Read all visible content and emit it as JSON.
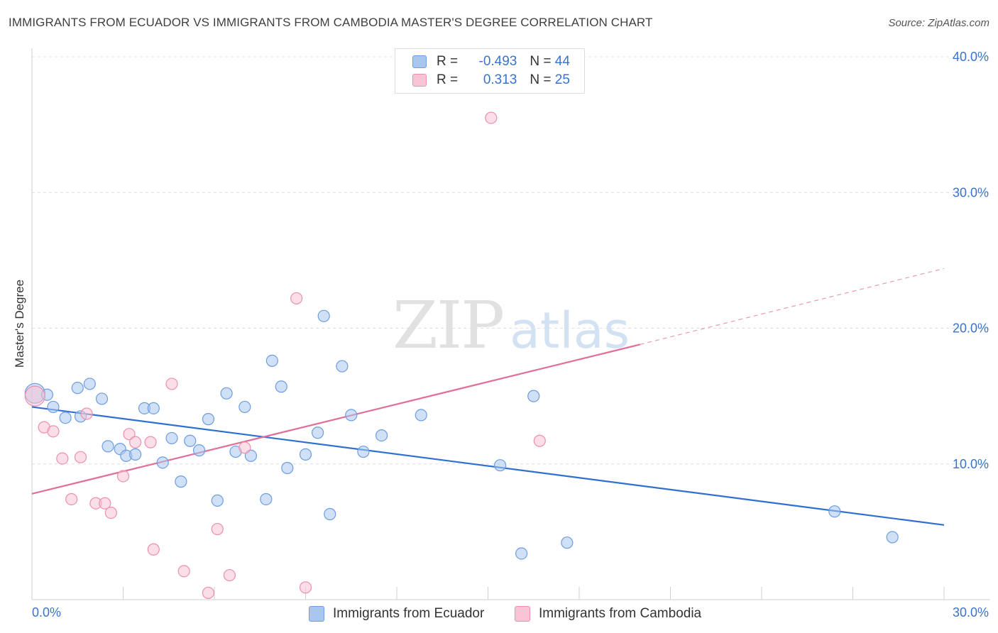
{
  "header": {
    "title": "IMMIGRANTS FROM ECUADOR VS IMMIGRANTS FROM CAMBODIA MASTER'S DEGREE CORRELATION CHART",
    "source": "Source: ZipAtlas.com"
  },
  "watermark": {
    "zip": "ZIP",
    "atlas": "atlas"
  },
  "legend": {
    "rows": [
      {
        "r_label": "R = ",
        "r_value": "-0.493",
        "n_label": "N = ",
        "n_value": "44",
        "color": "#a9c6ef",
        "border": "#6d9de0"
      },
      {
        "r_label": "R = ",
        "r_value": "0.313",
        "n_label": "N = ",
        "n_value": "25",
        "color": "#f8c3d3",
        "border": "#ec8fae"
      }
    ]
  },
  "bottom_legend": [
    {
      "label": "Immigrants from Ecuador",
      "color": "#a9c6ef",
      "border": "#6d9de0"
    },
    {
      "label": "Immigrants from Cambodia",
      "color": "#f8c3d3",
      "border": "#ec8fae"
    }
  ],
  "chart_data": {
    "type": "scatter",
    "title": "IMMIGRANTS FROM ECUADOR VS IMMIGRANTS FROM CAMBODIA MASTER'S DEGREE CORRELATION CHART",
    "ylabel": "Master's Degree",
    "xlim": [
      0,
      30
    ],
    "ylim": [
      0,
      40
    ],
    "x_ticks": [
      "0.0%",
      "30.0%"
    ],
    "y_ticks": [
      {
        "value": 10,
        "label": "10.0%"
      },
      {
        "value": 20,
        "label": "20.0%"
      },
      {
        "value": 30,
        "label": "30.0%"
      },
      {
        "value": 40,
        "label": "40.0%"
      }
    ],
    "grid": true,
    "legend_position": "top-center",
    "series": [
      {
        "name": "Immigrants from Ecuador",
        "color": "#6d9de0",
        "fill": "#a9c6ef",
        "line_color": "#2f6fd0",
        "trend": {
          "x0": 0,
          "y0": 14.2,
          "x1": 30,
          "y1": 5.5
        },
        "points": [
          [
            0.1,
            15.2
          ],
          [
            0.5,
            15.1
          ],
          [
            0.7,
            14.2
          ],
          [
            1.1,
            13.4
          ],
          [
            1.5,
            15.6
          ],
          [
            1.6,
            13.5
          ],
          [
            1.9,
            15.9
          ],
          [
            2.3,
            14.8
          ],
          [
            2.5,
            11.3
          ],
          [
            2.9,
            11.1
          ],
          [
            3.1,
            10.6
          ],
          [
            3.4,
            10.7
          ],
          [
            3.7,
            14.1
          ],
          [
            4.0,
            14.1
          ],
          [
            4.3,
            10.1
          ],
          [
            4.6,
            11.9
          ],
          [
            4.9,
            8.7
          ],
          [
            5.2,
            11.7
          ],
          [
            5.5,
            11.0
          ],
          [
            5.8,
            13.3
          ],
          [
            6.1,
            7.3
          ],
          [
            6.4,
            15.2
          ],
          [
            6.7,
            10.9
          ],
          [
            7.0,
            14.2
          ],
          [
            7.2,
            10.6
          ],
          [
            7.7,
            7.4
          ],
          [
            7.9,
            17.6
          ],
          [
            8.2,
            15.7
          ],
          [
            8.4,
            9.7
          ],
          [
            9.0,
            10.7
          ],
          [
            9.4,
            12.3
          ],
          [
            9.6,
            20.9
          ],
          [
            9.8,
            6.3
          ],
          [
            10.2,
            17.2
          ],
          [
            10.5,
            13.6
          ],
          [
            10.9,
            10.9
          ],
          [
            11.5,
            12.1
          ],
          [
            12.8,
            13.6
          ],
          [
            15.4,
            9.9
          ],
          [
            16.1,
            3.4
          ],
          [
            16.5,
            15.0
          ],
          [
            17.6,
            4.2
          ],
          [
            26.4,
            6.5
          ],
          [
            28.3,
            4.6
          ]
        ]
      },
      {
        "name": "Immigrants from Cambodia",
        "color": "#ec8fae",
        "fill": "#f8c3d3",
        "line_color": "#e0709a",
        "trend": {
          "x0": 0,
          "y0": 7.8,
          "x1": 20.0,
          "y1": 18.8,
          "dash_x1": 30,
          "dash_y1": 24.4
        },
        "points": [
          [
            0.1,
            15.0
          ],
          [
            0.4,
            12.7
          ],
          [
            0.7,
            12.4
          ],
          [
            1.0,
            10.4
          ],
          [
            1.3,
            7.4
          ],
          [
            1.6,
            10.5
          ],
          [
            1.8,
            13.7
          ],
          [
            2.1,
            7.1
          ],
          [
            2.4,
            7.1
          ],
          [
            2.6,
            6.4
          ],
          [
            3.0,
            9.1
          ],
          [
            3.2,
            12.2
          ],
          [
            3.4,
            11.6
          ],
          [
            3.9,
            11.6
          ],
          [
            4.0,
            3.7
          ],
          [
            4.6,
            15.9
          ],
          [
            5.0,
            2.1
          ],
          [
            5.8,
            0.5
          ],
          [
            6.1,
            5.2
          ],
          [
            6.5,
            1.8
          ],
          [
            7.0,
            11.2
          ],
          [
            8.7,
            22.2
          ],
          [
            9.0,
            0.9
          ],
          [
            15.1,
            35.5
          ],
          [
            16.7,
            11.7
          ]
        ]
      }
    ]
  }
}
